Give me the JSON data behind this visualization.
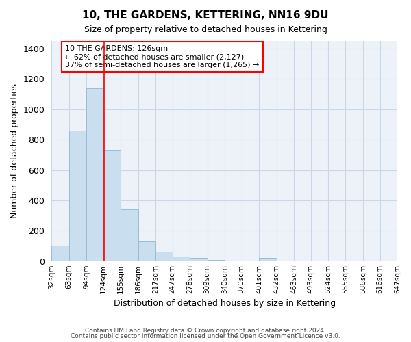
{
  "title": "10, THE GARDENS, KETTERING, NN16 9DU",
  "subtitle": "Size of property relative to detached houses in Kettering",
  "xlabel": "Distribution of detached houses by size in Kettering",
  "ylabel": "Number of detached properties",
  "bin_edges": [
    32,
    63,
    94,
    124,
    155,
    186,
    217,
    247,
    278,
    309,
    340,
    370,
    401,
    432,
    463,
    493,
    524,
    555,
    586,
    616,
    647
  ],
  "bar_heights": [
    100,
    860,
    1140,
    730,
    340,
    130,
    60,
    30,
    20,
    8,
    5,
    2,
    20,
    0,
    0,
    0,
    0,
    0,
    0,
    0
  ],
  "bar_color": "#c9dff0",
  "bar_edge_color": "#9bbdd4",
  "grid_color": "#c8d8e8",
  "background_color": "#edf2f8",
  "red_line_x": 126,
  "annotation_line1": "10 THE GARDENS: 126sqm",
  "annotation_line2": "← 62% of detached houses are smaller (2,127)",
  "annotation_line3": "37% of semi-detached houses are larger (1,265) →",
  "ylim": [
    0,
    1450
  ],
  "yticks": [
    0,
    200,
    400,
    600,
    800,
    1000,
    1200,
    1400
  ],
  "footer_line1": "Contains HM Land Registry data © Crown copyright and database right 2024.",
  "footer_line2": "Contains public sector information licensed under the Open Government Licence v3.0.",
  "tick_labels": [
    "32sqm",
    "63sqm",
    "94sqm",
    "124sqm",
    "155sqm",
    "186sqm",
    "217sqm",
    "247sqm",
    "278sqm",
    "309sqm",
    "340sqm",
    "370sqm",
    "401sqm",
    "432sqm",
    "463sqm",
    "493sqm",
    "524sqm",
    "555sqm",
    "586sqm",
    "616sqm",
    "647sqm"
  ],
  "title_fontsize": 11,
  "subtitle_fontsize": 9,
  "ylabel_fontsize": 9,
  "xlabel_fontsize": 9,
  "ytick_fontsize": 9,
  "xtick_fontsize": 7.5
}
